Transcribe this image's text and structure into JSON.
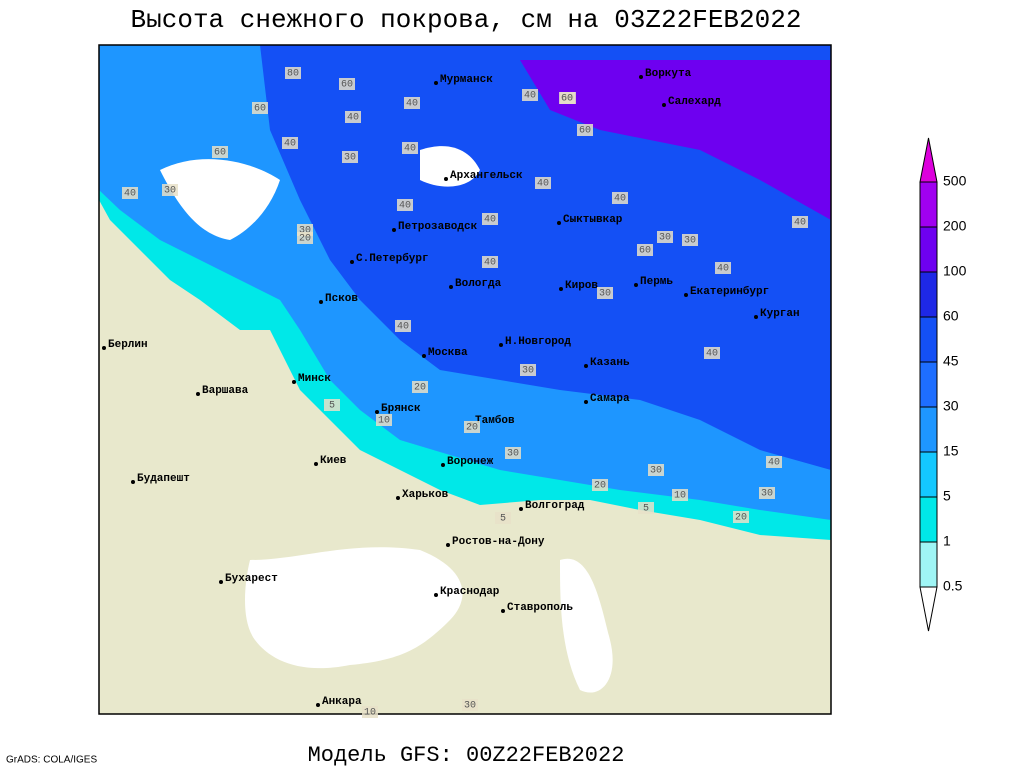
{
  "title": "Высота снежного покрова, см на 03Z22FEB2022",
  "footer": "Модель GFS: 00Z22FEB2022",
  "credit": "GrADS: COLA/IGES",
  "map": {
    "cities": [
      "Мурманск",
      "Воркута",
      "Салехард",
      "Архангельск",
      "Сыктывкар",
      "Петрозаводск",
      "С.Петербург",
      "Вологда",
      "Киров",
      "Пермь",
      "Екатеринбург",
      "Курган",
      "Псков",
      "Н.Новгород",
      "Москва",
      "Казань",
      "Берлин",
      "Минск",
      "Варшава",
      "Самара",
      "Брянск",
      "Тамбов",
      "Киев",
      "Воронеж",
      "Будапешт",
      "Харьков",
      "Волгоград",
      "Ростов-на-Дону",
      "Бухарест",
      "Краснодар",
      "Ставрополь",
      "Анкара"
    ],
    "contour_labels": [
      40,
      60,
      40,
      60,
      80,
      60,
      40,
      30,
      40,
      60,
      40,
      30,
      60,
      40,
      40,
      60,
      40,
      30,
      40,
      40,
      40,
      60,
      30,
      40,
      30,
      20,
      40,
      30,
      40,
      40,
      30,
      20,
      10,
      5,
      30,
      20,
      30,
      10,
      20,
      5,
      40,
      30,
      20,
      5,
      10,
      30
    ]
  },
  "legend": {
    "levels": [
      0.5,
      1,
      5,
      15,
      30,
      45,
      60,
      100,
      200,
      500
    ],
    "colors": [
      "#ffffff",
      "#9ff5f5",
      "#00e8e8",
      "#14c8ff",
      "#1e96ff",
      "#1e6eff",
      "#1450f5",
      "#1e28e6",
      "#6e00f0",
      "#a000f0",
      "#dc00dc"
    ]
  }
}
